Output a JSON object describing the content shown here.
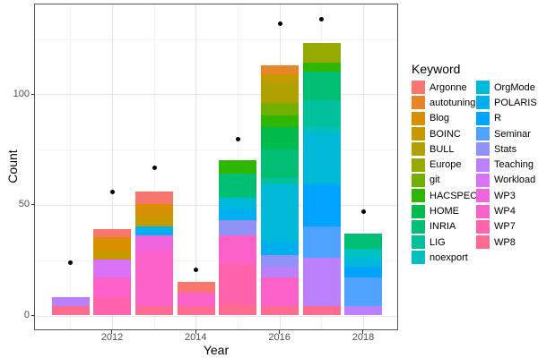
{
  "chart_data": {
    "type": "bar",
    "stacked": true,
    "title": "",
    "xlabel": "Year",
    "ylabel": "Count",
    "legend_title": "Keyword",
    "legend_position": "right",
    "grid": true,
    "categories": [
      2011,
      2012,
      2013,
      2014,
      2015,
      2016,
      2017,
      2018
    ],
    "x_tick_labels": [
      "2012",
      "2014",
      "2016",
      "2018"
    ],
    "x_tick_years": [
      2012,
      2014,
      2016,
      2018
    ],
    "x_minor_years": [
      2011,
      2013,
      2015,
      2017
    ],
    "y_tick_labels": [
      "0",
      "50",
      "100"
    ],
    "y_tick_values": [
      0,
      50,
      100
    ],
    "y_minor_values": [
      25,
      75,
      125
    ],
    "ylim": [
      -7,
      141
    ],
    "series": [
      {
        "name": "Argonne",
        "color": "#F8766D",
        "values": [
          0,
          4,
          6,
          5,
          0,
          0,
          0,
          0
        ]
      },
      {
        "name": "autotuning",
        "color": "#E88526",
        "values": [
          0,
          0,
          0,
          0,
          0,
          4,
          0,
          0
        ]
      },
      {
        "name": "Blog",
        "color": "#D89000",
        "values": [
          0,
          6,
          5,
          0,
          0,
          0,
          0,
          0
        ]
      },
      {
        "name": "BOINC",
        "color": "#C69900",
        "values": [
          0,
          4,
          5,
          0,
          0,
          4,
          0,
          0
        ]
      },
      {
        "name": "BULL",
        "color": "#B0A100",
        "values": [
          0,
          0,
          0,
          0,
          0,
          9,
          0,
          0
        ]
      },
      {
        "name": "Europe",
        "color": "#95A900",
        "values": [
          0,
          0,
          0,
          0,
          0,
          0,
          9,
          0
        ]
      },
      {
        "name": "git",
        "color": "#72B000",
        "values": [
          0,
          0,
          0,
          0,
          0,
          6,
          0,
          0
        ]
      },
      {
        "name": "HACSPECIS",
        "color": "#2FB600",
        "values": [
          0,
          0,
          0,
          0,
          6,
          5,
          4,
          0
        ]
      },
      {
        "name": "HOME",
        "color": "#00BB4B",
        "values": [
          0,
          0,
          0,
          0,
          0,
          10,
          0,
          0
        ]
      },
      {
        "name": "INRIA",
        "color": "#00BF74",
        "values": [
          0,
          0,
          0,
          0,
          11,
          13,
          13,
          7
        ]
      },
      {
        "name": "LIG",
        "color": "#00C19C",
        "values": [
          0,
          0,
          0,
          0,
          0,
          3,
          12,
          0
        ]
      },
      {
        "name": "noexport",
        "color": "#00C0C0",
        "values": [
          0,
          0,
          0,
          0,
          0,
          0,
          3,
          4
        ]
      },
      {
        "name": "OrgMode",
        "color": "#00B9D8",
        "values": [
          0,
          0,
          0,
          0,
          5,
          26,
          23,
          4
        ]
      },
      {
        "name": "POLARIS",
        "color": "#00B0EE",
        "values": [
          0,
          0,
          4,
          0,
          5,
          6,
          0,
          0
        ]
      },
      {
        "name": "R",
        "color": "#00A3FF",
        "values": [
          0,
          0,
          0,
          0,
          0,
          0,
          19,
          5
        ]
      },
      {
        "name": "Seminar",
        "color": "#4FA2FF",
        "values": [
          0,
          0,
          0,
          0,
          0,
          0,
          14,
          13
        ]
      },
      {
        "name": "Stats",
        "color": "#9092F8",
        "values": [
          0,
          0,
          0,
          0,
          7,
          5,
          0,
          0
        ]
      },
      {
        "name": "Teaching",
        "color": "#BB80FB",
        "values": [
          4,
          0,
          0,
          0,
          0,
          5,
          22,
          4
        ]
      },
      {
        "name": "Workload",
        "color": "#DA72F8",
        "values": [
          0,
          8,
          0,
          0,
          0,
          0,
          0,
          0
        ]
      },
      {
        "name": "WP3",
        "color": "#F064DF",
        "values": [
          0,
          0,
          7,
          0,
          0,
          0,
          0,
          0
        ]
      },
      {
        "name": "WP4",
        "color": "#FC61C9",
        "values": [
          0,
          9,
          25,
          6,
          13,
          13,
          0,
          0
        ]
      },
      {
        "name": "WP7",
        "color": "#FF63AC",
        "values": [
          0,
          8,
          0,
          0,
          18,
          0,
          0,
          0
        ]
      },
      {
        "name": "WP8",
        "color": "#FF6B8F",
        "values": [
          4,
          0,
          4,
          4,
          5,
          4,
          4,
          0
        ]
      }
    ],
    "points": {
      "name": "totals-dots",
      "marker": "circle",
      "color": "#000000",
      "values": [
        24,
        56,
        67,
        21,
        80,
        132,
        134,
        47
      ]
    }
  }
}
